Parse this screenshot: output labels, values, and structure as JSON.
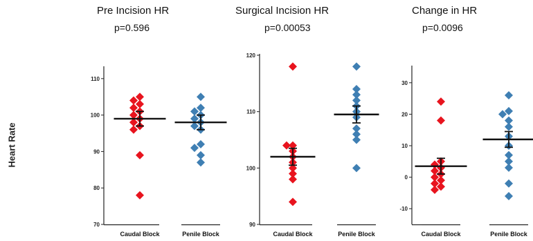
{
  "figure": {
    "ylabel": "Heart Rate"
  },
  "colors": {
    "caudal": "#e8141e",
    "penile": "#3f7fb3",
    "axis": "#222222"
  },
  "chart_data": [
    {
      "type": "scatter",
      "title": "Pre Incision HR",
      "subtitle": "p=0.596",
      "categories": [
        "Caudal Block",
        "Penile Block"
      ],
      "ylim": [
        70,
        113
      ],
      "yticks": [
        70,
        80,
        90,
        100,
        110
      ],
      "series": [
        {
          "values": [
            105,
            104,
            103,
            102,
            101,
            100,
            99,
            98,
            97,
            96,
            89,
            78
          ],
          "mean": 99,
          "error": 2
        },
        {
          "values": [
            105,
            102,
            101,
            100,
            99,
            98,
            97,
            96,
            92,
            91,
            89,
            87
          ],
          "mean": 98,
          "error": 2
        }
      ]
    },
    {
      "type": "scatter",
      "title": "Surgical Incision HR",
      "subtitle": "p=0.00053",
      "categories": [
        "Caudal Block",
        "Penile Block"
      ],
      "ylim": [
        90,
        120
      ],
      "yticks": [
        90,
        100,
        110,
        120
      ],
      "series": [
        {
          "values": [
            118,
            104,
            104,
            103,
            102,
            101,
            100,
            99,
            98,
            94
          ],
          "mean": 102,
          "error": 1.5
        },
        {
          "values": [
            118,
            114,
            113,
            112,
            111,
            110,
            109,
            107,
            106,
            105,
            100
          ],
          "mean": 109.5,
          "error": 1.5
        }
      ]
    },
    {
      "type": "scatter",
      "title": "Change in HR",
      "subtitle": "p=0.0096",
      "categories": [
        "Caudal Block",
        "Penile Block"
      ],
      "ylim": [
        -15,
        35
      ],
      "yticks": [
        -10,
        0,
        10,
        20,
        30
      ],
      "series": [
        {
          "values": [
            24,
            18,
            5,
            4,
            3,
            2,
            1,
            0,
            -1,
            -2,
            -3,
            -4
          ],
          "mean": 3.5,
          "error": 2.5
        },
        {
          "values": [
            26,
            21,
            20,
            18,
            16,
            13,
            10,
            7,
            5,
            3,
            -2,
            -6
          ],
          "mean": 12,
          "error": 2.5
        }
      ]
    }
  ]
}
